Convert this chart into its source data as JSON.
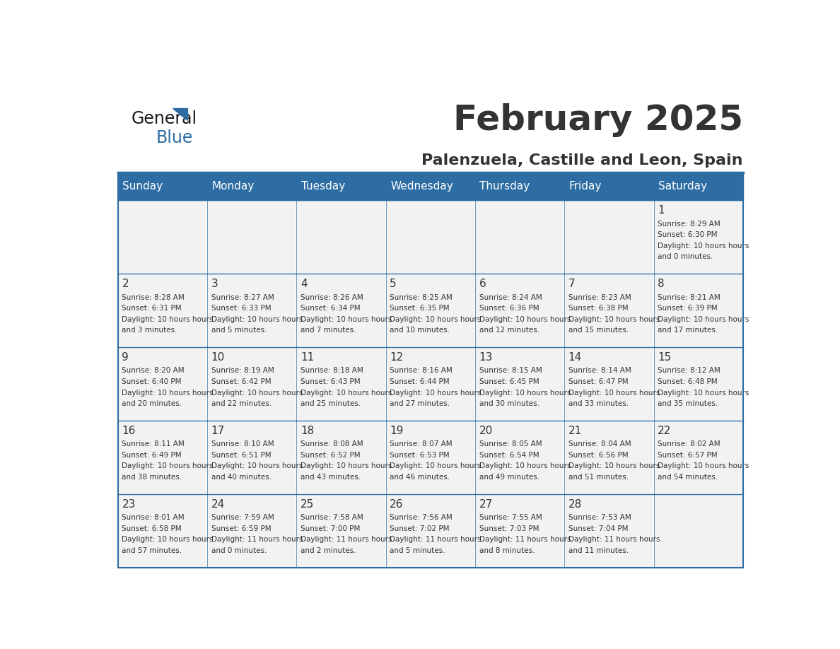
{
  "title": "February 2025",
  "subtitle": "Palenzuela, Castille and Leon, Spain",
  "header_color": "#2E6DA4",
  "header_text_color": "#FFFFFF",
  "cell_bg_color": "#F2F2F2",
  "border_color": "#2E6DA4",
  "text_color": "#333333",
  "days_of_week": [
    "Sunday",
    "Monday",
    "Tuesday",
    "Wednesday",
    "Thursday",
    "Friday",
    "Saturday"
  ],
  "logo_color1": "#1a1a1a",
  "logo_color2": "#2E6DA4",
  "calendar_data": [
    [
      null,
      null,
      null,
      null,
      null,
      null,
      {
        "day": 1,
        "sunrise": "8:29 AM",
        "sunset": "6:30 PM",
        "daylight": "10 hours and 0 minutes."
      }
    ],
    [
      {
        "day": 2,
        "sunrise": "8:28 AM",
        "sunset": "6:31 PM",
        "daylight": "10 hours and 3 minutes."
      },
      {
        "day": 3,
        "sunrise": "8:27 AM",
        "sunset": "6:33 PM",
        "daylight": "10 hours and 5 minutes."
      },
      {
        "day": 4,
        "sunrise": "8:26 AM",
        "sunset": "6:34 PM",
        "daylight": "10 hours and 7 minutes."
      },
      {
        "day": 5,
        "sunrise": "8:25 AM",
        "sunset": "6:35 PM",
        "daylight": "10 hours and 10 minutes."
      },
      {
        "day": 6,
        "sunrise": "8:24 AM",
        "sunset": "6:36 PM",
        "daylight": "10 hours and 12 minutes."
      },
      {
        "day": 7,
        "sunrise": "8:23 AM",
        "sunset": "6:38 PM",
        "daylight": "10 hours and 15 minutes."
      },
      {
        "day": 8,
        "sunrise": "8:21 AM",
        "sunset": "6:39 PM",
        "daylight": "10 hours and 17 minutes."
      }
    ],
    [
      {
        "day": 9,
        "sunrise": "8:20 AM",
        "sunset": "6:40 PM",
        "daylight": "10 hours and 20 minutes."
      },
      {
        "day": 10,
        "sunrise": "8:19 AM",
        "sunset": "6:42 PM",
        "daylight": "10 hours and 22 minutes."
      },
      {
        "day": 11,
        "sunrise": "8:18 AM",
        "sunset": "6:43 PM",
        "daylight": "10 hours and 25 minutes."
      },
      {
        "day": 12,
        "sunrise": "8:16 AM",
        "sunset": "6:44 PM",
        "daylight": "10 hours and 27 minutes."
      },
      {
        "day": 13,
        "sunrise": "8:15 AM",
        "sunset": "6:45 PM",
        "daylight": "10 hours and 30 minutes."
      },
      {
        "day": 14,
        "sunrise": "8:14 AM",
        "sunset": "6:47 PM",
        "daylight": "10 hours and 33 minutes."
      },
      {
        "day": 15,
        "sunrise": "8:12 AM",
        "sunset": "6:48 PM",
        "daylight": "10 hours and 35 minutes."
      }
    ],
    [
      {
        "day": 16,
        "sunrise": "8:11 AM",
        "sunset": "6:49 PM",
        "daylight": "10 hours and 38 minutes."
      },
      {
        "day": 17,
        "sunrise": "8:10 AM",
        "sunset": "6:51 PM",
        "daylight": "10 hours and 40 minutes."
      },
      {
        "day": 18,
        "sunrise": "8:08 AM",
        "sunset": "6:52 PM",
        "daylight": "10 hours and 43 minutes."
      },
      {
        "day": 19,
        "sunrise": "8:07 AM",
        "sunset": "6:53 PM",
        "daylight": "10 hours and 46 minutes."
      },
      {
        "day": 20,
        "sunrise": "8:05 AM",
        "sunset": "6:54 PM",
        "daylight": "10 hours and 49 minutes."
      },
      {
        "day": 21,
        "sunrise": "8:04 AM",
        "sunset": "6:56 PM",
        "daylight": "10 hours and 51 minutes."
      },
      {
        "day": 22,
        "sunrise": "8:02 AM",
        "sunset": "6:57 PM",
        "daylight": "10 hours and 54 minutes."
      }
    ],
    [
      {
        "day": 23,
        "sunrise": "8:01 AM",
        "sunset": "6:58 PM",
        "daylight": "10 hours and 57 minutes."
      },
      {
        "day": 24,
        "sunrise": "7:59 AM",
        "sunset": "6:59 PM",
        "daylight": "11 hours and 0 minutes."
      },
      {
        "day": 25,
        "sunrise": "7:58 AM",
        "sunset": "7:00 PM",
        "daylight": "11 hours and 2 minutes."
      },
      {
        "day": 26,
        "sunrise": "7:56 AM",
        "sunset": "7:02 PM",
        "daylight": "11 hours and 5 minutes."
      },
      {
        "day": 27,
        "sunrise": "7:55 AM",
        "sunset": "7:03 PM",
        "daylight": "11 hours and 8 minutes."
      },
      {
        "day": 28,
        "sunrise": "7:53 AM",
        "sunset": "7:04 PM",
        "daylight": "11 hours and 11 minutes."
      },
      null
    ]
  ]
}
